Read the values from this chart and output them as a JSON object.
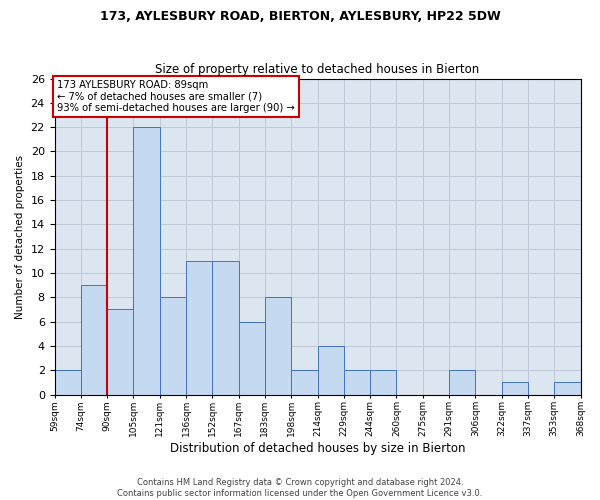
{
  "title1": "173, AYLESBURY ROAD, BIERTON, AYLESBURY, HP22 5DW",
  "title2": "Size of property relative to detached houses in Bierton",
  "xlabel": "Distribution of detached houses by size in Bierton",
  "ylabel": "Number of detached properties",
  "footer1": "Contains HM Land Registry data © Crown copyright and database right 2024.",
  "footer2": "Contains public sector information licensed under the Open Government Licence v3.0.",
  "annotation_line1": "173 AYLESBURY ROAD: 89sqm",
  "annotation_line2": "← 7% of detached houses are smaller (7)",
  "annotation_line3": "93% of semi-detached houses are larger (90) →",
  "subject_tick_index": 2,
  "bar_values": [
    2,
    9,
    7,
    22,
    8,
    11,
    11,
    6,
    8,
    2,
    4,
    2,
    2,
    0,
    0,
    2,
    0,
    1,
    0,
    1
  ],
  "bin_edges": [
    0,
    1,
    2,
    3,
    4,
    5,
    6,
    7,
    8,
    9,
    10,
    11,
    12,
    13,
    14,
    15,
    16,
    17,
    18,
    19,
    20
  ],
  "tick_labels": [
    "59sqm",
    "74sqm",
    "90sqm",
    "105sqm",
    "121sqm",
    "136sqm",
    "152sqm",
    "167sqm",
    "183sqm",
    "198sqm",
    "214sqm",
    "229sqm",
    "244sqm",
    "260sqm",
    "275sqm",
    "291sqm",
    "306sqm",
    "322sqm",
    "337sqm",
    "353sqm",
    "368sqm"
  ],
  "bar_color": "#c5d9f1",
  "bar_edge_color": "#4472c4",
  "subject_line_color": "#cc0000",
  "annotation_box_color": "#cc0000",
  "grid_color": "#c0c8d8",
  "background_color": "#dce6f1",
  "ylim": [
    0,
    26
  ],
  "yticks": [
    0,
    2,
    4,
    6,
    8,
    10,
    12,
    14,
    16,
    18,
    20,
    22,
    24,
    26
  ]
}
